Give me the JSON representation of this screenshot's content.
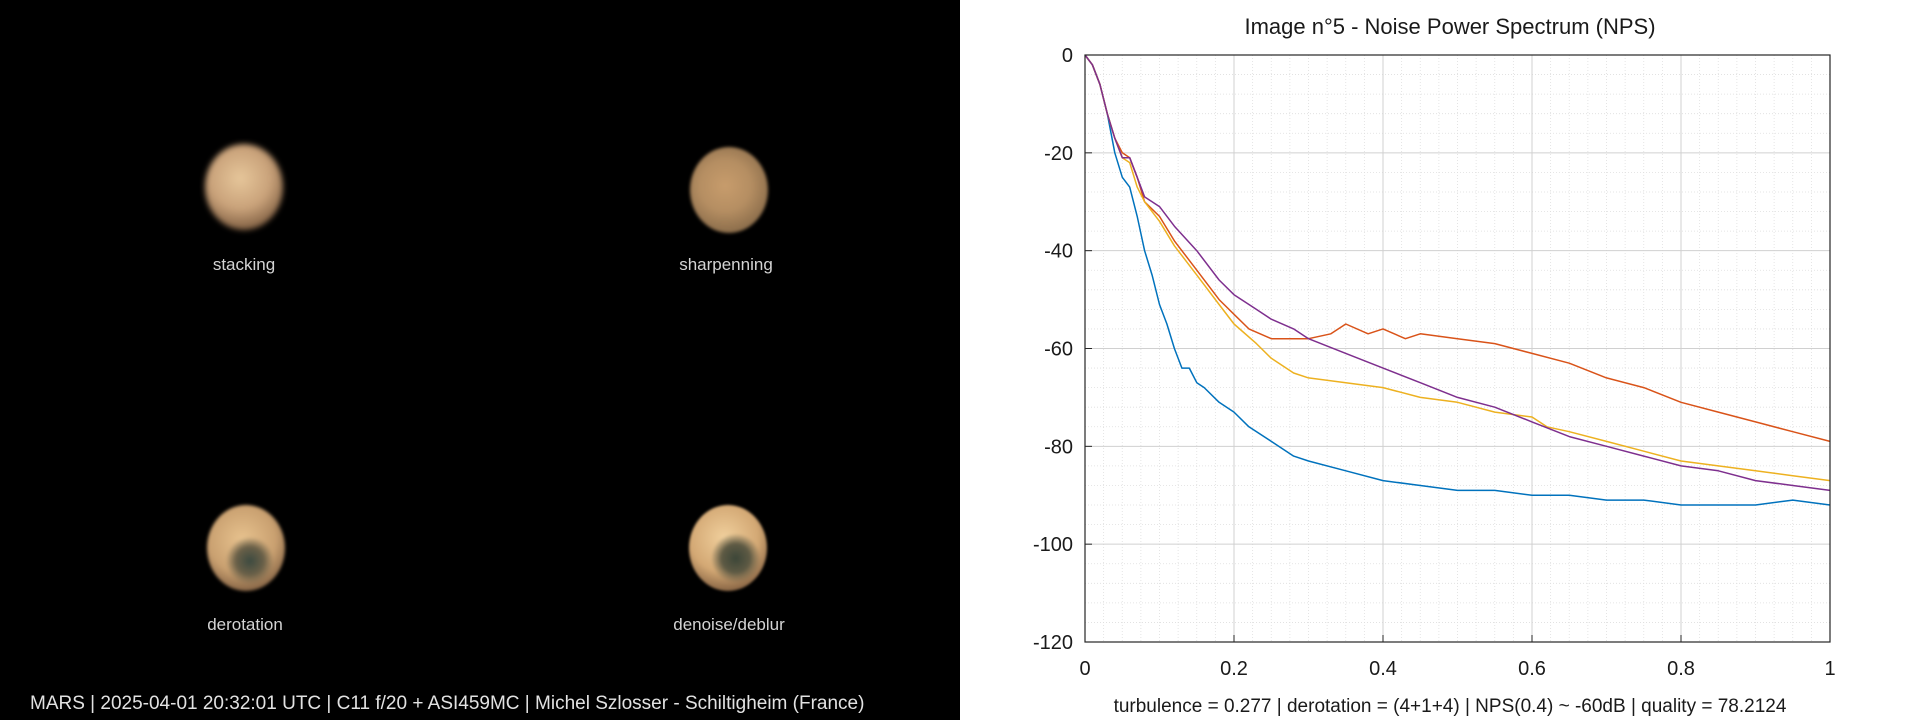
{
  "left_panel": {
    "background": "#000000",
    "panels": [
      {
        "label": "stacking"
      },
      {
        "label": "sharpenning"
      },
      {
        "label": "derotation"
      },
      {
        "label": "denoise/deblur"
      }
    ],
    "caption": "MARS | 2025-04-01  20:32:01 UTC | C11 f/20 + ASI459MC | Michel Szlosser - Schiltigheim (France)"
  },
  "chart_data": {
    "type": "line",
    "title": "Image n°5 - Noise Power Spectrum (NPS)",
    "xlabel": "turbulence = 0.277 | derotation = (4+1+4) | NPS(0.4) ~ -60dB |  quality = 78.2124",
    "ylabel": "",
    "xlim": [
      0,
      1
    ],
    "ylim": [
      -120,
      0
    ],
    "xticks": [
      "0",
      "0.2",
      "0.4",
      "0.6",
      "0.8",
      "1"
    ],
    "yticks": [
      "0",
      "-20",
      "-40",
      "-60",
      "-80",
      "-100",
      "-120"
    ],
    "grid": true,
    "minor_grid": true,
    "legend": "none",
    "series": [
      {
        "color": "#0072BD",
        "x": [
          0,
          0.01,
          0.02,
          0.03,
          0.04,
          0.05,
          0.06,
          0.07,
          0.08,
          0.09,
          0.1,
          0.11,
          0.12,
          0.13,
          0.14,
          0.15,
          0.16,
          0.18,
          0.2,
          0.22,
          0.25,
          0.28,
          0.3,
          0.35,
          0.4,
          0.45,
          0.5,
          0.55,
          0.6,
          0.65,
          0.7,
          0.75,
          0.8,
          0.85,
          0.9,
          0.95,
          1.0
        ],
        "y": [
          0,
          -2,
          -6,
          -12,
          -20,
          -25,
          -27,
          -33,
          -40,
          -45,
          -51,
          -55,
          -60,
          -64,
          -64,
          -67,
          -68,
          -71,
          -73,
          -76,
          -79,
          -82,
          -83,
          -85,
          -87,
          -88,
          -89,
          -89,
          -90,
          -90,
          -91,
          -91,
          -92,
          -92,
          -92,
          -91,
          -92
        ]
      },
      {
        "color": "#D95319",
        "x": [
          0,
          0.01,
          0.02,
          0.03,
          0.04,
          0.05,
          0.06,
          0.07,
          0.08,
          0.1,
          0.12,
          0.15,
          0.18,
          0.2,
          0.22,
          0.25,
          0.3,
          0.33,
          0.35,
          0.38,
          0.4,
          0.43,
          0.45,
          0.5,
          0.55,
          0.6,
          0.65,
          0.7,
          0.75,
          0.8,
          0.85,
          0.9,
          0.95,
          1.0
        ],
        "y": [
          0,
          -2,
          -6,
          -12,
          -17,
          -20,
          -21,
          -25,
          -30,
          -33,
          -38,
          -44,
          -50,
          -53,
          -56,
          -58,
          -58,
          -57,
          -55,
          -57,
          -56,
          -58,
          -57,
          -58,
          -59,
          -61,
          -63,
          -66,
          -68,
          -71,
          -73,
          -75,
          -77,
          -79
        ]
      },
      {
        "color": "#EDB120",
        "x": [
          0,
          0.01,
          0.02,
          0.03,
          0.04,
          0.05,
          0.06,
          0.07,
          0.08,
          0.1,
          0.12,
          0.15,
          0.18,
          0.2,
          0.23,
          0.25,
          0.28,
          0.3,
          0.35,
          0.4,
          0.45,
          0.5,
          0.55,
          0.6,
          0.62,
          0.65,
          0.7,
          0.75,
          0.8,
          0.85,
          0.9,
          0.95,
          1.0
        ],
        "y": [
          0,
          -2,
          -6,
          -12,
          -17,
          -21,
          -22,
          -27,
          -30,
          -34,
          -39,
          -45,
          -51,
          -55,
          -59,
          -62,
          -65,
          -66,
          -67,
          -68,
          -70,
          -71,
          -73,
          -74,
          -76,
          -77,
          -79,
          -81,
          -83,
          -84,
          -85,
          -86,
          -87
        ]
      },
      {
        "color": "#7E2F8E",
        "x": [
          0,
          0.01,
          0.02,
          0.03,
          0.04,
          0.05,
          0.06,
          0.07,
          0.08,
          0.1,
          0.12,
          0.15,
          0.18,
          0.2,
          0.23,
          0.25,
          0.28,
          0.3,
          0.35,
          0.4,
          0.45,
          0.5,
          0.55,
          0.6,
          0.65,
          0.7,
          0.75,
          0.8,
          0.85,
          0.9,
          0.95,
          1.0
        ],
        "y": [
          0,
          -2,
          -6,
          -12,
          -17,
          -21,
          -21,
          -25,
          -29,
          -31,
          -35,
          -40,
          -46,
          -49,
          -52,
          -54,
          -56,
          -58,
          -61,
          -64,
          -67,
          -70,
          -72,
          -75,
          -78,
          -80,
          -82,
          -84,
          -85,
          -87,
          -88,
          -89
        ]
      }
    ]
  }
}
